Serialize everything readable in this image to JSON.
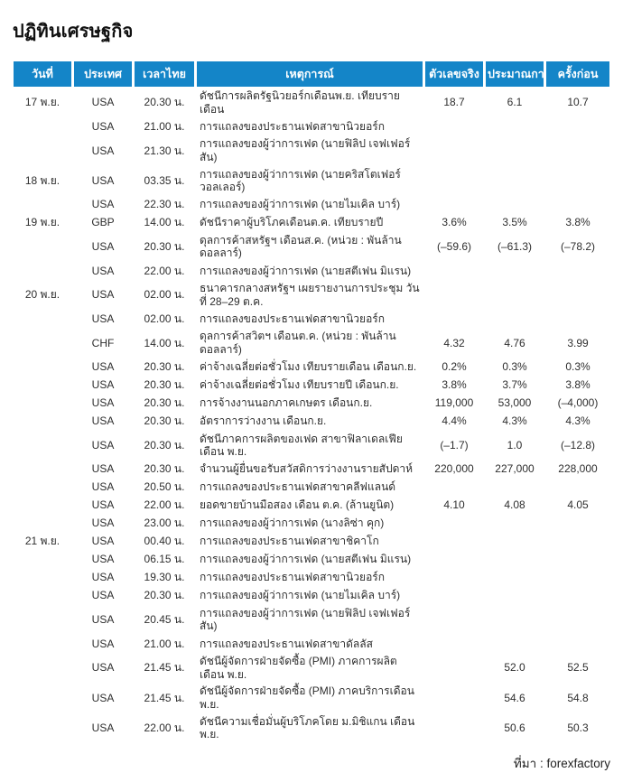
{
  "title": "ปฏิทินเศรษฐกิจ",
  "colors": {
    "header_bg": "#1485c8",
    "row_stripe": "#f0f0f0"
  },
  "footer": {
    "source_label": "ที่มา : forexfactory"
  },
  "table": {
    "columns": [
      {
        "key": "date",
        "label": "วันที่"
      },
      {
        "key": "country",
        "label": "ประเทศ"
      },
      {
        "key": "time",
        "label": "เวลาไทย"
      },
      {
        "key": "event",
        "label": "เหตุการณ์"
      },
      {
        "key": "actual",
        "label": "ตัวเลขจริง"
      },
      {
        "key": "forecast",
        "label": "ประมาณการ"
      },
      {
        "key": "previous",
        "label": "ครั้งก่อน"
      }
    ],
    "rows": [
      {
        "group": 0,
        "date": "17 พ.ย.",
        "country": "USA",
        "time": "20.30 น.",
        "event": "ดัชนีการผลิตรัฐนิวยอร์กเดือนพ.ย. เทียบรายเดือน",
        "actual": "18.7",
        "forecast": "6.1",
        "previous": "10.7"
      },
      {
        "group": 0,
        "date": "",
        "country": "USA",
        "time": "21.00 น.",
        "event": "การแถลงของประธานเฟดสาขานิวยอร์ก",
        "actual": "",
        "forecast": "",
        "previous": ""
      },
      {
        "group": 0,
        "date": "",
        "country": "USA",
        "time": "21.30 น.",
        "event": "การแถลงของผู้ว่าการเฟด (นายฟิลิป เจฟเฟอร์สัน)",
        "actual": "",
        "forecast": "",
        "previous": ""
      },
      {
        "group": 1,
        "date": "18 พ.ย.",
        "country": "USA",
        "time": "03.35 น.",
        "event": "การแถลงของผู้ว่าการเฟด (นายคริสโตเฟอร์ วอลเลอร์)",
        "actual": "",
        "forecast": "",
        "previous": ""
      },
      {
        "group": 1,
        "date": "",
        "country": "USA",
        "time": "22.30 น.",
        "event": "การแถลงของผู้ว่าการเฟด (นายไมเคิล บาร์)",
        "actual": "",
        "forecast": "",
        "previous": ""
      },
      {
        "group": 2,
        "date": "19 พ.ย.",
        "country": "GBP",
        "time": "14.00 น.",
        "event": "ดัชนีราคาผู้บริโภคเดือนต.ค. เทียบรายปี",
        "actual": "3.6%",
        "forecast": "3.5%",
        "previous": "3.8%"
      },
      {
        "group": 2,
        "date": "",
        "country": "USA",
        "time": "20.30 น.",
        "event": "ดุลการค้าสหรัฐฯ เดือนส.ค. (หน่วย : พันล้านดอลลาร์)",
        "actual": "(–59.6)",
        "forecast": "(–61.3)",
        "previous": "(–78.2)"
      },
      {
        "group": 2,
        "date": "",
        "country": "USA",
        "time": "22.00 น.",
        "event": "การแถลงของผู้ว่าการเฟด (นายสตีเฟน มิแรน)",
        "actual": "",
        "forecast": "",
        "previous": ""
      },
      {
        "group": 3,
        "date": "20 พ.ย.",
        "country": "USA",
        "time": "02.00 น.",
        "event": "ธนาคารกลางสหรัฐฯ เผยรายงานการประชุม วันที่ 28–29 ต.ค.",
        "actual": "",
        "forecast": "",
        "previous": ""
      },
      {
        "group": 3,
        "date": "",
        "country": "USA",
        "time": "02.00 น.",
        "event": "การแถลงของประธานเฟดสาขานิวยอร์ก",
        "actual": "",
        "forecast": "",
        "previous": ""
      },
      {
        "group": 3,
        "date": "",
        "country": "CHF",
        "time": "14.00 น.",
        "event": "ดุลการค้าสวิตฯ เดือนต.ค. (หน่วย : พันล้านดอลลาร์)",
        "actual": "4.32",
        "forecast": "4.76",
        "previous": "3.99"
      },
      {
        "group": 3,
        "date": "",
        "country": "USA",
        "time": "20.30 น.",
        "event": "ค่าจ้างเฉลี่ยต่อชั่วโมง เทียบรายเดือน เดือนก.ย.",
        "actual": "0.2%",
        "forecast": "0.3%",
        "previous": "0.3%"
      },
      {
        "group": 3,
        "date": "",
        "country": "USA",
        "time": "20.30 น.",
        "event": "ค่าจ้างเฉลี่ยต่อชั่วโมง เทียบรายปี เดือนก.ย.",
        "actual": "3.8%",
        "forecast": "3.7%",
        "previous": "3.8%"
      },
      {
        "group": 3,
        "date": "",
        "country": "USA",
        "time": "20.30 น.",
        "event": "การจ้างงานนอกภาคเกษตร เดือนก.ย.",
        "actual": "119,000",
        "forecast": "53,000",
        "previous": "(–4,000)"
      },
      {
        "group": 3,
        "date": "",
        "country": "USA",
        "time": "20.30 น.",
        "event": "อัตราการว่างงาน เดือนก.ย.",
        "actual": "4.4%",
        "forecast": "4.3%",
        "previous": "4.3%"
      },
      {
        "group": 3,
        "date": "",
        "country": "USA",
        "time": "20.30 น.",
        "event": "ดัชนีภาคการผลิตของเฟด สาขาฟิลาเดลเฟียเดือน พ.ย.",
        "actual": "(–1.7)",
        "forecast": "1.0",
        "previous": "(–12.8)"
      },
      {
        "group": 3,
        "date": "",
        "country": "USA",
        "time": "20.30 น.",
        "event": "จำนวนผู้ยื่นขอรับสวัสดิการว่างงานรายสัปดาห์",
        "actual": "220,000",
        "forecast": "227,000",
        "previous": "228,000"
      },
      {
        "group": 3,
        "date": "",
        "country": "USA",
        "time": "20.50 น.",
        "event": "การแถลงของประธานเฟดสาขาคลีฟแลนด์",
        "actual": "",
        "forecast": "",
        "previous": ""
      },
      {
        "group": 3,
        "date": "",
        "country": "USA",
        "time": "22.00 น.",
        "event": "ยอดขายบ้านมือสอง เดือน ต.ค. (ล้านยูนิต)",
        "actual": "4.10",
        "forecast": "4.08",
        "previous": "4.05"
      },
      {
        "group": 3,
        "date": "",
        "country": "USA",
        "time": "23.00 น.",
        "event": "การแถลงของผู้ว่าการเฟด (นางลิซ่า คุก)",
        "actual": "",
        "forecast": "",
        "previous": ""
      },
      {
        "group": 4,
        "date": "21 พ.ย.",
        "country": "USA",
        "time": "00.40 น.",
        "event": "การแถลงของประธานเฟดสาขาชิคาโก",
        "actual": "",
        "forecast": "",
        "previous": ""
      },
      {
        "group": 4,
        "date": "",
        "country": "USA",
        "time": "06.15 น.",
        "event": "การแถลงของผู้ว่าการเฟด (นายสตีเฟน มิแรน)",
        "actual": "",
        "forecast": "",
        "previous": ""
      },
      {
        "group": 4,
        "date": "",
        "country": "USA",
        "time": "19.30 น.",
        "event": "การแถลงของประธานเฟดสาขานิวยอร์ก",
        "actual": "",
        "forecast": "",
        "previous": ""
      },
      {
        "group": 4,
        "date": "",
        "country": "USA",
        "time": "20.30 น.",
        "event": "การแถลงของผู้ว่าการเฟด (นายไมเคิล บาร์)",
        "actual": "",
        "forecast": "",
        "previous": ""
      },
      {
        "group": 4,
        "date": "",
        "country": "USA",
        "time": "20.45 น.",
        "event": "การแถลงของผู้ว่าการเฟด (นายฟิลิป เจฟเฟอร์สัน)",
        "actual": "",
        "forecast": "",
        "previous": ""
      },
      {
        "group": 4,
        "date": "",
        "country": "USA",
        "time": "21.00 น.",
        "event": "การแถลงของประธานเฟดสาขาดัลลัส",
        "actual": "",
        "forecast": "",
        "previous": ""
      },
      {
        "group": 4,
        "date": "",
        "country": "USA",
        "time": "21.45 น.",
        "event": "ดัชนีผู้จัดการฝ่ายจัดซื้อ (PMI) ภาคการผลิตเดือน พ.ย.",
        "actual": "",
        "forecast": "52.0",
        "previous": "52.5"
      },
      {
        "group": 4,
        "date": "",
        "country": "USA",
        "time": "21.45 น.",
        "event": "ดัชนีผู้จัดการฝ่ายจัดซื้อ (PMI) ภาคบริการเดือน พ.ย.",
        "actual": "",
        "forecast": "54.6",
        "previous": "54.8"
      },
      {
        "group": 4,
        "date": "",
        "country": "USA",
        "time": "22.00 น.",
        "event": "ดัชนีความเชื่อมั่นผู้บริโภคโดย ม.มิชิแกน เดือน พ.ย.",
        "actual": "",
        "forecast": "50.6",
        "previous": "50.3"
      }
    ]
  }
}
